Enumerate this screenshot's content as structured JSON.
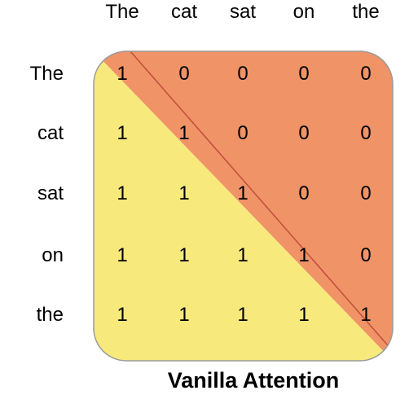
{
  "tokens": [
    "The",
    "cat",
    "sat",
    "on",
    "the"
  ],
  "matrix": [
    [
      1,
      0,
      0,
      0,
      0
    ],
    [
      1,
      1,
      0,
      0,
      0
    ],
    [
      1,
      1,
      1,
      0,
      0
    ],
    [
      1,
      1,
      1,
      1,
      0
    ],
    [
      1,
      1,
      1,
      1,
      1
    ]
  ],
  "colors": {
    "lower_triangle": "#f8e97c",
    "upper_triangle": "#f09367",
    "border": "#9a9a9a",
    "diagonal": "#c0503a"
  },
  "caption": "Vanilla Attention"
}
